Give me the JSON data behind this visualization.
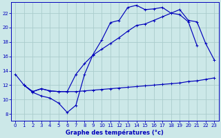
{
  "title": "Graphe des températures (°c)",
  "bg_color": "#cce8e8",
  "grid_color": "#aacccc",
  "line_color": "#0000bb",
  "xlim": [
    -0.5,
    23.5
  ],
  "ylim": [
    7.0,
    23.5
  ],
  "xticks": [
    0,
    1,
    2,
    3,
    4,
    5,
    6,
    7,
    8,
    9,
    10,
    11,
    12,
    13,
    14,
    15,
    16,
    17,
    18,
    19,
    20,
    21,
    22,
    23
  ],
  "yticks": [
    8,
    10,
    12,
    14,
    16,
    18,
    20,
    22
  ],
  "line1_x": [
    0,
    1,
    2,
    3,
    4,
    5,
    6,
    7,
    8,
    9,
    10,
    11,
    12,
    13,
    14,
    15,
    16,
    17,
    18,
    19,
    20,
    21
  ],
  "line1_y": [
    13.5,
    12.0,
    11.0,
    10.5,
    10.2,
    9.5,
    8.2,
    9.2,
    13.5,
    16.3,
    18.3,
    20.7,
    21.0,
    22.8,
    23.1,
    22.5,
    22.6,
    22.8,
    22.0,
    21.8,
    20.8,
    17.5
  ],
  "line2_x": [
    1,
    2,
    3,
    4,
    5,
    6,
    7,
    8,
    9,
    10,
    11,
    12,
    13,
    14,
    15,
    16,
    17,
    18,
    19,
    20,
    21,
    22,
    23
  ],
  "line2_y": [
    12.0,
    11.1,
    11.5,
    11.2,
    11.1,
    11.1,
    11.1,
    11.2,
    11.3,
    11.4,
    11.5,
    11.6,
    11.7,
    11.8,
    11.9,
    12.0,
    12.1,
    12.2,
    12.3,
    12.5,
    12.6,
    12.8,
    13.0
  ],
  "line3_x": [
    1,
    2,
    3,
    4,
    5,
    6,
    7,
    8,
    9,
    10,
    11,
    12,
    13,
    14,
    15,
    16,
    17,
    18,
    19,
    20,
    21,
    22,
    23
  ],
  "line3_y": [
    12.0,
    11.1,
    11.5,
    11.2,
    11.1,
    11.1,
    13.5,
    15.0,
    16.2,
    17.0,
    17.8,
    18.6,
    19.5,
    20.3,
    20.5,
    21.0,
    21.5,
    22.0,
    22.5,
    21.0,
    20.8,
    17.8,
    15.5
  ]
}
